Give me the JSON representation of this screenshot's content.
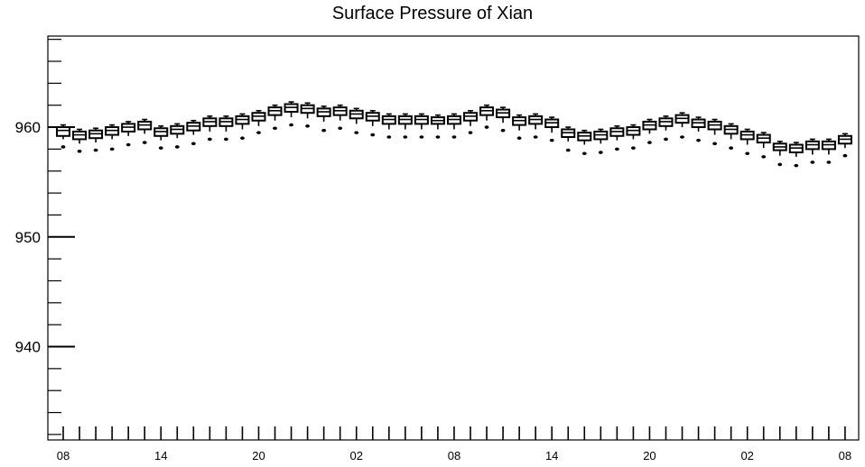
{
  "chart_data": {
    "type": "box",
    "title": "Surface Pressure of Xian",
    "xlabel": "",
    "ylabel": "",
    "ylim": [
      931.5,
      968.3
    ],
    "y_major_ticks": [
      940,
      950,
      960
    ],
    "y_minor_step": 2,
    "x_tick_labels": [
      "08",
      "14",
      "20",
      "02",
      "08",
      "14",
      "20",
      "02",
      "08"
    ],
    "x_tick_positions": [
      0,
      6,
      12,
      18,
      24,
      30,
      36,
      42,
      48
    ],
    "x_minor_ticks_per_label": 6,
    "boxes": [
      {
        "x": 0,
        "q1": 959.2,
        "median": 959.7,
        "q3": 960.0,
        "whisker_low": 958.9,
        "whisker_high": 960.2,
        "outlier": 958.2
      },
      {
        "x": 1,
        "q1": 958.9,
        "median": 959.3,
        "q3": 959.6,
        "whisker_low": 958.5,
        "whisker_high": 959.8,
        "outlier": 957.8
      },
      {
        "x": 2,
        "q1": 959.0,
        "median": 959.4,
        "q3": 959.7,
        "whisker_low": 958.6,
        "whisker_high": 959.9,
        "outlier": 957.9
      },
      {
        "x": 3,
        "q1": 959.3,
        "median": 959.7,
        "q3": 960.0,
        "whisker_low": 958.9,
        "whisker_high": 960.2,
        "outlier": 958.0
      },
      {
        "x": 4,
        "q1": 959.6,
        "median": 960.0,
        "q3": 960.3,
        "whisker_low": 959.2,
        "whisker_high": 960.5,
        "outlier": 958.4
      },
      {
        "x": 5,
        "q1": 959.8,
        "median": 960.2,
        "q3": 960.5,
        "whisker_low": 959.4,
        "whisker_high": 960.7,
        "outlier": 958.6
      },
      {
        "x": 6,
        "q1": 959.2,
        "median": 959.6,
        "q3": 959.9,
        "whisker_low": 958.8,
        "whisker_high": 960.1,
        "outlier": 958.1
      },
      {
        "x": 7,
        "q1": 959.4,
        "median": 959.8,
        "q3": 960.1,
        "whisker_low": 959.0,
        "whisker_high": 960.3,
        "outlier": 958.2
      },
      {
        "x": 8,
        "q1": 959.7,
        "median": 960.1,
        "q3": 960.4,
        "whisker_low": 959.3,
        "whisker_high": 960.6,
        "outlier": 958.5
      },
      {
        "x": 9,
        "q1": 960.1,
        "median": 960.5,
        "q3": 960.8,
        "whisker_low": 959.6,
        "whisker_high": 961.0,
        "outlier": 958.9
      },
      {
        "x": 10,
        "q1": 960.1,
        "median": 960.5,
        "q3": 960.8,
        "whisker_low": 959.6,
        "whisker_high": 961.0,
        "outlier": 958.9
      },
      {
        "x": 11,
        "q1": 960.3,
        "median": 960.7,
        "q3": 961.0,
        "whisker_low": 959.8,
        "whisker_high": 961.2,
        "outlier": 959.0
      },
      {
        "x": 12,
        "q1": 960.6,
        "median": 961.0,
        "q3": 961.3,
        "whisker_low": 960.1,
        "whisker_high": 961.5,
        "outlier": 959.5
      },
      {
        "x": 13,
        "q1": 961.1,
        "median": 961.5,
        "q3": 961.8,
        "whisker_low": 960.6,
        "whisker_high": 962.0,
        "outlier": 959.9
      },
      {
        "x": 14,
        "q1": 961.4,
        "median": 961.8,
        "q3": 962.1,
        "whisker_low": 960.9,
        "whisker_high": 962.3,
        "outlier": 960.2
      },
      {
        "x": 15,
        "q1": 961.3,
        "median": 961.7,
        "q3": 962.0,
        "whisker_low": 960.8,
        "whisker_high": 962.2,
        "outlier": 960.1
      },
      {
        "x": 16,
        "q1": 961.0,
        "median": 961.4,
        "q3": 961.7,
        "whisker_low": 960.5,
        "whisker_high": 961.9,
        "outlier": 959.7
      },
      {
        "x": 17,
        "q1": 961.1,
        "median": 961.5,
        "q3": 961.8,
        "whisker_low": 960.6,
        "whisker_high": 962.0,
        "outlier": 959.9
      },
      {
        "x": 18,
        "q1": 960.8,
        "median": 961.2,
        "q3": 961.5,
        "whisker_low": 960.3,
        "whisker_high": 961.7,
        "outlier": 959.5
      },
      {
        "x": 19,
        "q1": 960.6,
        "median": 961.0,
        "q3": 961.3,
        "whisker_low": 960.1,
        "whisker_high": 961.5,
        "outlier": 959.3
      },
      {
        "x": 20,
        "q1": 960.3,
        "median": 960.7,
        "q3": 961.0,
        "whisker_low": 959.8,
        "whisker_high": 961.2,
        "outlier": 959.1
      },
      {
        "x": 21,
        "q1": 960.3,
        "median": 960.7,
        "q3": 961.0,
        "whisker_low": 959.8,
        "whisker_high": 961.2,
        "outlier": 959.1
      },
      {
        "x": 22,
        "q1": 960.3,
        "median": 960.7,
        "q3": 961.0,
        "whisker_low": 959.8,
        "whisker_high": 961.2,
        "outlier": 959.1
      },
      {
        "x": 23,
        "q1": 960.3,
        "median": 960.6,
        "q3": 960.9,
        "whisker_low": 959.8,
        "whisker_high": 961.1,
        "outlier": 959.1
      },
      {
        "x": 24,
        "q1": 960.3,
        "median": 960.7,
        "q3": 961.0,
        "whisker_low": 959.8,
        "whisker_high": 961.2,
        "outlier": 959.1
      },
      {
        "x": 25,
        "q1": 960.6,
        "median": 961.0,
        "q3": 961.3,
        "whisker_low": 960.1,
        "whisker_high": 961.5,
        "outlier": 959.5
      },
      {
        "x": 26,
        "q1": 961.1,
        "median": 961.5,
        "q3": 961.8,
        "whisker_low": 960.6,
        "whisker_high": 962.0,
        "outlier": 960.0
      },
      {
        "x": 27,
        "q1": 960.9,
        "median": 961.3,
        "q3": 961.6,
        "whisker_low": 960.4,
        "whisker_high": 961.8,
        "outlier": 959.7
      },
      {
        "x": 28,
        "q1": 960.2,
        "median": 960.6,
        "q3": 960.9,
        "whisker_low": 959.7,
        "whisker_high": 961.1,
        "outlier": 959.0
      },
      {
        "x": 29,
        "q1": 960.3,
        "median": 960.7,
        "q3": 961.0,
        "whisker_low": 959.8,
        "whisker_high": 961.2,
        "outlier": 959.1
      },
      {
        "x": 30,
        "q1": 960.0,
        "median": 960.4,
        "q3": 960.7,
        "whisker_low": 959.5,
        "whisker_high": 960.9,
        "outlier": 958.8
      },
      {
        "x": 31,
        "q1": 959.1,
        "median": 959.5,
        "q3": 959.8,
        "whisker_low": 958.7,
        "whisker_high": 960.0,
        "outlier": 957.9
      },
      {
        "x": 32,
        "q1": 958.8,
        "median": 959.2,
        "q3": 959.5,
        "whisker_low": 958.4,
        "whisker_high": 959.7,
        "outlier": 957.6
      },
      {
        "x": 33,
        "q1": 958.9,
        "median": 959.3,
        "q3": 959.6,
        "whisker_low": 958.5,
        "whisker_high": 959.8,
        "outlier": 957.7
      },
      {
        "x": 34,
        "q1": 959.2,
        "median": 959.6,
        "q3": 959.9,
        "whisker_low": 958.8,
        "whisker_high": 960.1,
        "outlier": 958.0
      },
      {
        "x": 35,
        "q1": 959.3,
        "median": 959.7,
        "q3": 960.0,
        "whisker_low": 958.9,
        "whisker_high": 960.2,
        "outlier": 958.1
      },
      {
        "x": 36,
        "q1": 959.8,
        "median": 960.2,
        "q3": 960.5,
        "whisker_low": 959.4,
        "whisker_high": 960.7,
        "outlier": 958.6
      },
      {
        "x": 37,
        "q1": 960.1,
        "median": 960.5,
        "q3": 960.8,
        "whisker_low": 959.7,
        "whisker_high": 961.0,
        "outlier": 958.9
      },
      {
        "x": 38,
        "q1": 960.4,
        "median": 960.8,
        "q3": 961.1,
        "whisker_low": 960.0,
        "whisker_high": 961.3,
        "outlier": 959.1
      },
      {
        "x": 39,
        "q1": 960.0,
        "median": 960.4,
        "q3": 960.7,
        "whisker_low": 959.6,
        "whisker_high": 960.9,
        "outlier": 958.8
      },
      {
        "x": 40,
        "q1": 959.8,
        "median": 960.2,
        "q3": 960.5,
        "whisker_low": 959.3,
        "whisker_high": 960.7,
        "outlier": 958.5
      },
      {
        "x": 41,
        "q1": 959.4,
        "median": 959.8,
        "q3": 960.1,
        "whisker_low": 958.9,
        "whisker_high": 960.3,
        "outlier": 958.1
      },
      {
        "x": 42,
        "q1": 958.9,
        "median": 959.3,
        "q3": 959.6,
        "whisker_low": 958.4,
        "whisker_high": 959.8,
        "outlier": 957.6
      },
      {
        "x": 43,
        "q1": 958.6,
        "median": 959.0,
        "q3": 959.3,
        "whisker_low": 958.1,
        "whisker_high": 959.5,
        "outlier": 957.3
      },
      {
        "x": 44,
        "q1": 957.9,
        "median": 958.2,
        "q3": 958.5,
        "whisker_low": 957.4,
        "whisker_high": 958.7,
        "outlier": 956.6
      },
      {
        "x": 45,
        "q1": 957.7,
        "median": 958.1,
        "q3": 958.4,
        "whisker_low": 957.3,
        "whisker_high": 958.6,
        "outlier": 956.5
      },
      {
        "x": 46,
        "q1": 958.0,
        "median": 958.4,
        "q3": 958.7,
        "whisker_low": 957.5,
        "whisker_high": 958.9,
        "outlier": 956.8
      },
      {
        "x": 47,
        "q1": 958.0,
        "median": 958.4,
        "q3": 958.7,
        "whisker_low": 957.5,
        "whisker_high": 958.9,
        "outlier": 956.8
      },
      {
        "x": 48,
        "q1": 958.5,
        "median": 958.9,
        "q3": 959.2,
        "whisker_low": 958.1,
        "whisker_high": 959.4,
        "outlier": 957.4
      }
    ]
  }
}
